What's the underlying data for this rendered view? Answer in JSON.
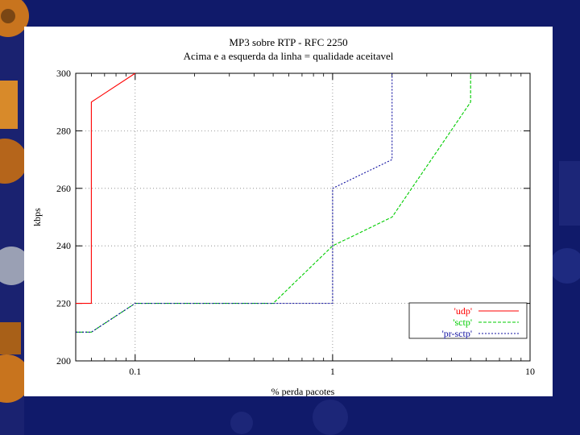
{
  "colors": {
    "slide_background": "#101a6a",
    "decor_orange": "#c8741e",
    "decor_gray": "#9aa0b4",
    "panel": "#ffffff",
    "grid": "#808080"
  },
  "chart_data": {
    "type": "line",
    "title": "MP3 sobre RTP - RFC 2250",
    "subtitle": "Acima e a esquerda da linha = qualidade aceitavel",
    "xlabel": "% perda pacotes",
    "ylabel": "kbps",
    "xscale": "log",
    "xlim": [
      0.05,
      10
    ],
    "ylim": [
      200,
      300
    ],
    "xticks": [
      0.1,
      1,
      10
    ],
    "xtick_labels": [
      "0.1",
      "1",
      "10"
    ],
    "yticks": [
      200,
      220,
      240,
      260,
      280,
      300
    ],
    "ytick_labels": [
      "200",
      "220",
      "240",
      "260",
      "280",
      "300"
    ],
    "grid": true,
    "legend_position": "bottom-right",
    "series": [
      {
        "name": "'udp'",
        "color": "#ff0000",
        "dash": "solid",
        "points": [
          [
            0.05,
            220
          ],
          [
            0.06,
            220
          ],
          [
            0.06,
            290
          ],
          [
            0.1,
            300
          ]
        ]
      },
      {
        "name": "'sctp'",
        "color": "#00cc00",
        "dash": "dashed",
        "points": [
          [
            0.05,
            210
          ],
          [
            0.06,
            210
          ],
          [
            0.1,
            220
          ],
          [
            0.5,
            220
          ],
          [
            1,
            240
          ],
          [
            2,
            250
          ],
          [
            5,
            290
          ],
          [
            5,
            300
          ]
        ]
      },
      {
        "name": "'pr-sctp'",
        "color": "#1010a0",
        "dash": "dotted",
        "points": [
          [
            0.05,
            210
          ],
          [
            0.06,
            210
          ],
          [
            0.1,
            220
          ],
          [
            1,
            220
          ],
          [
            1,
            260
          ],
          [
            2,
            270
          ],
          [
            2,
            300
          ]
        ]
      }
    ]
  }
}
